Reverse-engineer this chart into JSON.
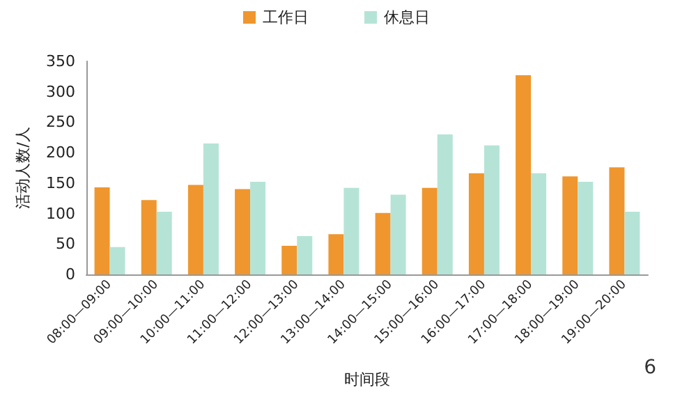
{
  "chart_data": {
    "type": "bar",
    "xlabel": "时间段",
    "ylabel": "活动人数/人",
    "categories": [
      "08:00—09:00",
      "09:00—10:00",
      "10:00—11:00",
      "11:00—12:00",
      "12:00—13:00",
      "13:00—14:00",
      "14:00—15:00",
      "15:00—16:00",
      "16:00—17:00",
      "17:00—18:00",
      "18:00—19:00",
      "19:00—20:00"
    ],
    "series": [
      {
        "name": "工作日",
        "color": "#f0962e",
        "values": [
          143,
          122,
          147,
          140,
          47,
          66,
          101,
          142,
          166,
          327,
          161,
          176
        ]
      },
      {
        "name": "休息日",
        "color": "#b5e4d6",
        "values": [
          45,
          103,
          215,
          152,
          63,
          142,
          131,
          230,
          212,
          166,
          152,
          103
        ]
      }
    ],
    "ylim": [
      0,
      350
    ],
    "yticks": [
      0,
      50,
      100,
      150,
      200,
      250,
      300,
      350
    ],
    "grid": false,
    "legend": "top",
    "annotations": [
      "6"
    ]
  }
}
